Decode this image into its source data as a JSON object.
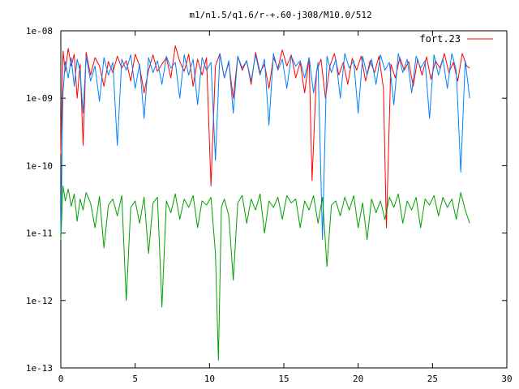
{
  "chart_data": {
    "type": "line",
    "title": "m1/n1.5/q1.6/r-+.60-j308/M10.0/512",
    "xlabel": "",
    "ylabel": "",
    "xlim": [
      0,
      30
    ],
    "ylim": [
      1e-13,
      1e-08
    ],
    "yscale": "log",
    "grid": false,
    "legend_position": "top-right",
    "x_ticks": [
      0,
      5,
      10,
      15,
      20,
      25,
      30
    ],
    "x_tick_labels": [
      "0",
      "5",
      "10",
      "15",
      "20",
      "25",
      "30"
    ],
    "y_ticks": [
      1e-13,
      1e-12,
      1e-11,
      1e-10,
      1e-09,
      1e-08
    ],
    "y_tick_labels": [
      "1e-13",
      "1e-12",
      "1e-11",
      "1e-10",
      "1e-09",
      "1e-08"
    ],
    "series": [
      {
        "name": "fort.23",
        "color": "#ff0000",
        "x": [
          0,
          0.15,
          0.3,
          0.5,
          0.7,
          0.9,
          1.1,
          1.3,
          1.5,
          1.7,
          2.0,
          2.3,
          2.6,
          2.9,
          3.2,
          3.5,
          3.8,
          4.1,
          4.4,
          4.7,
          5.0,
          5.3,
          5.6,
          5.9,
          6.2,
          6.5,
          6.8,
          7.1,
          7.4,
          7.7,
          8.0,
          8.3,
          8.6,
          8.9,
          9.2,
          9.5,
          9.8,
          10.1,
          10.4,
          10.7,
          11.0,
          11.3,
          11.6,
          11.9,
          12.2,
          12.5,
          12.8,
          13.1,
          13.4,
          13.7,
          14.0,
          14.3,
          14.6,
          14.9,
          15.2,
          15.5,
          15.8,
          16.1,
          16.4,
          16.7,
          16.9,
          17.2,
          17.5,
          17.8,
          18.1,
          18.4,
          18.7,
          19.0,
          19.3,
          19.6,
          19.9,
          20.2,
          20.5,
          20.8,
          21.1,
          21.4,
          21.7,
          21.9,
          22.2,
          22.5,
          22.8,
          23.1,
          23.4,
          23.7,
          24.0,
          24.3,
          24.6,
          24.9,
          25.2,
          25.5,
          25.8,
          26.1,
          26.4,
          26.7,
          27.0,
          27.3,
          27.5
        ],
        "y": [
          1.5e-10,
          5e-09,
          2.5e-09,
          5.5e-09,
          3e-09,
          4.5e-09,
          1e-09,
          3.2e-09,
          2e-10,
          4.8e-09,
          2.2e-09,
          4e-09,
          3e-09,
          1.5e-09,
          3.5e-09,
          2.4e-09,
          4.2e-09,
          2.8e-09,
          3.6e-09,
          1.8e-09,
          4.5e-09,
          3e-09,
          1.2e-09,
          2.6e-09,
          4.4e-09,
          2.5e-09,
          3.2e-09,
          4e-09,
          2e-09,
          6e-09,
          3.5e-09,
          2.5e-09,
          4.5e-09,
          1.5e-09,
          3.8e-09,
          2.2e-09,
          4e-09,
          5e-11,
          3e-09,
          4.6e-09,
          2e-09,
          3.4e-09,
          1e-09,
          4.2e-09,
          2.6e-09,
          3.6e-09,
          1.6e-09,
          4.8e-09,
          2.4e-09,
          3.2e-09,
          1.4e-09,
          4e-09,
          2.8e-09,
          5.2e-09,
          3e-09,
          4.4e-09,
          2e-09,
          3.4e-09,
          1.2e-09,
          4e-09,
          6e-11,
          2.5e-09,
          3.8e-09,
          1e-09,
          3e-09,
          4.6e-09,
          2.2e-09,
          3.4e-09,
          1.6e-09,
          3.9e-09,
          2.6e-09,
          4.2e-09,
          1.8e-09,
          3.6e-09,
          2.4e-09,
          4.2e-09,
          1.4e-09,
          1.2e-11,
          3.2e-09,
          2e-09,
          4e-09,
          2.6e-09,
          3.5e-09,
          1.5e-09,
          3.8e-09,
          2.2e-09,
          4.1e-09,
          1.9e-09,
          3.6e-09,
          2.8e-09,
          4.6e-09,
          2.4e-09,
          3.4e-09,
          1.8e-09,
          4.6e-09,
          3e-09,
          2.8e-09
        ]
      },
      {
        "color": "#0080ff",
        "x": [
          0,
          0.15,
          0.3,
          0.5,
          0.7,
          0.9,
          1.1,
          1.3,
          1.5,
          1.7,
          2.0,
          2.3,
          2.6,
          2.9,
          3.2,
          3.5,
          3.8,
          4.1,
          4.4,
          4.7,
          5.0,
          5.3,
          5.6,
          5.9,
          6.2,
          6.5,
          6.8,
          7.1,
          7.4,
          7.7,
          8.0,
          8.3,
          8.6,
          8.9,
          9.2,
          9.5,
          9.8,
          10.1,
          10.4,
          10.7,
          11.0,
          11.3,
          11.6,
          11.9,
          12.2,
          12.5,
          12.8,
          13.1,
          13.4,
          13.7,
          14.0,
          14.3,
          14.6,
          14.9,
          15.2,
          15.5,
          15.8,
          16.1,
          16.4,
          16.7,
          17.0,
          17.3,
          17.6,
          17.9,
          18.2,
          18.5,
          18.8,
          19.1,
          19.4,
          19.7,
          20.0,
          20.3,
          20.6,
          20.9,
          21.2,
          21.5,
          21.8,
          22.1,
          22.4,
          22.7,
          23.0,
          23.3,
          23.6,
          23.9,
          24.2,
          24.5,
          24.8,
          25.1,
          25.4,
          25.7,
          26.0,
          26.3,
          26.6,
          26.9,
          27.2,
          27.5
        ],
        "y": [
          1e-11,
          1.2e-09,
          3.5e-09,
          2e-09,
          4e-09,
          1.5e-09,
          3.8e-09,
          2.5e-09,
          6e-10,
          4.2e-09,
          1.8e-09,
          3e-09,
          9e-10,
          4e-09,
          2.2e-09,
          3.4e-09,
          2e-10,
          3.8e-09,
          2.6e-09,
          4.4e-09,
          1.4e-09,
          3.2e-09,
          5e-10,
          4e-09,
          2.4e-09,
          3.6e-09,
          1.6e-09,
          4.2e-09,
          2.8e-09,
          3.4e-09,
          1e-09,
          4.4e-09,
          2.2e-09,
          3.8e-09,
          8e-10,
          4e-09,
          2.6e-09,
          3.4e-09,
          1.2e-10,
          4.6e-09,
          2e-09,
          3.6e-09,
          6e-10,
          4.2e-09,
          2.8e-09,
          3.6e-09,
          1.8e-09,
          4.4e-09,
          2.2e-09,
          3.8e-09,
          4e-10,
          4.6e-09,
          2.6e-09,
          3.8e-09,
          1.4e-09,
          4.2e-09,
          3e-09,
          3.6e-09,
          2e-09,
          4e-09,
          1.2e-09,
          3.4e-09,
          8e-12,
          4.2e-09,
          2.4e-09,
          3.8e-09,
          1e-09,
          4.6e-09,
          2.8e-09,
          3.6e-09,
          6e-10,
          4.2e-09,
          2.2e-09,
          3.8e-09,
          1.6e-09,
          4.4e-09,
          2.6e-09,
          3.4e-09,
          8e-10,
          4.6e-09,
          2.4e-09,
          3.8e-09,
          1.2e-09,
          4.2e-09,
          2.8e-09,
          3.6e-09,
          5e-10,
          4.4e-09,
          2.2e-09,
          3.8e-09,
          1.4e-09,
          4.6e-09,
          2.6e-09,
          8e-11,
          3.6e-09,
          1e-09
        ]
      },
      {
        "color": "#00a000",
        "x": [
          0,
          0.15,
          0.3,
          0.5,
          0.7,
          0.9,
          1.1,
          1.3,
          1.5,
          1.7,
          2.0,
          2.3,
          2.6,
          2.9,
          3.2,
          3.5,
          3.8,
          4.1,
          4.4,
          4.7,
          5.0,
          5.3,
          5.6,
          5.9,
          6.2,
          6.5,
          6.8,
          7.1,
          7.4,
          7.7,
          8.0,
          8.3,
          8.6,
          8.9,
          9.2,
          9.5,
          9.8,
          10.1,
          10.4,
          10.6,
          10.8,
          11.0,
          11.3,
          11.6,
          11.9,
          12.2,
          12.5,
          12.8,
          13.1,
          13.4,
          13.7,
          14.0,
          14.3,
          14.6,
          14.9,
          15.2,
          15.5,
          15.8,
          16.1,
          16.4,
          16.7,
          17.0,
          17.3,
          17.6,
          17.9,
          18.2,
          18.5,
          18.8,
          19.1,
          19.4,
          19.7,
          20.0,
          20.3,
          20.6,
          20.9,
          21.2,
          21.5,
          21.8,
          22.1,
          22.4,
          22.7,
          23.0,
          23.3,
          23.6,
          23.9,
          24.2,
          24.5,
          24.8,
          25.1,
          25.4,
          25.7,
          26.0,
          26.3,
          26.6,
          26.9,
          27.2,
          27.5
        ],
        "y": [
          8e-12,
          5e-11,
          3e-11,
          4.5e-11,
          2.5e-11,
          3.8e-11,
          1.5e-11,
          3.2e-11,
          2.2e-11,
          4e-11,
          2.8e-11,
          1.2e-11,
          3.5e-11,
          6e-12,
          2.6e-11,
          3.2e-11,
          1.8e-11,
          3.6e-11,
          1e-12,
          2.4e-11,
          3e-11,
          1.4e-11,
          3.4e-11,
          5e-12,
          2.8e-11,
          3.4e-11,
          8e-13,
          3e-11,
          2e-11,
          3.8e-11,
          1.6e-11,
          3.2e-11,
          2.4e-11,
          3.6e-11,
          1.2e-11,
          3e-11,
          2.6e-11,
          3.4e-11,
          5e-12,
          1.3e-13,
          2.4e-11,
          3.2e-11,
          1.8e-11,
          2e-12,
          2.8e-11,
          3.6e-11,
          1.4e-11,
          3.2e-11,
          2.2e-11,
          3.8e-11,
          1e-11,
          3e-11,
          2.4e-11,
          3.4e-11,
          1.6e-11,
          3.6e-11,
          2.8e-11,
          3.2e-11,
          1.2e-11,
          3e-11,
          2.2e-11,
          3.6e-11,
          1.4e-11,
          3.4e-11,
          3.2e-12,
          2.6e-11,
          3e-11,
          1.8e-11,
          3.4e-11,
          2.2e-11,
          3.6e-11,
          1.2e-11,
          2.8e-11,
          8e-12,
          3.2e-11,
          2e-11,
          3e-11,
          1.6e-11,
          3.4e-11,
          2.4e-11,
          3.8e-11,
          1.4e-11,
          3e-11,
          2.2e-11,
          3.4e-11,
          1.2e-11,
          3.2e-11,
          2.6e-11,
          3.6e-11,
          1.8e-11,
          3.4e-11,
          2.4e-11,
          3.2e-11,
          1.6e-11,
          4e-11,
          2.2e-11,
          1.4e-11
        ]
      }
    ]
  }
}
